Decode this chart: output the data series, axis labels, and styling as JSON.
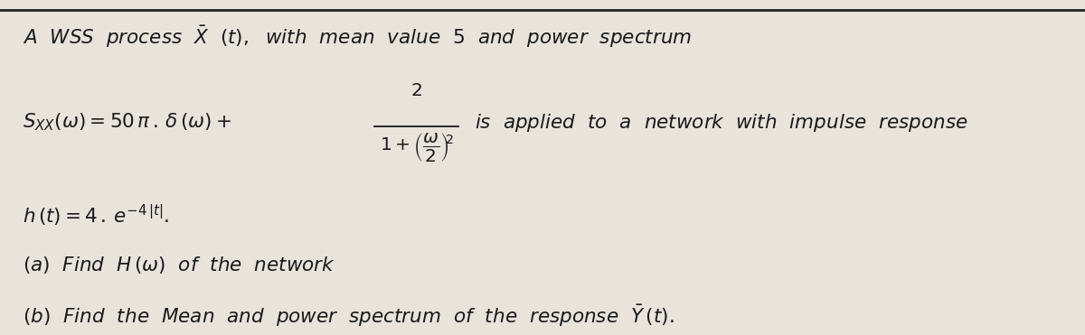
{
  "bg_color": "#e8e4dc",
  "text_color": "#1a1a1a",
  "top_line_color": "#222222",
  "fig_width": 12.0,
  "fig_height": 3.71
}
